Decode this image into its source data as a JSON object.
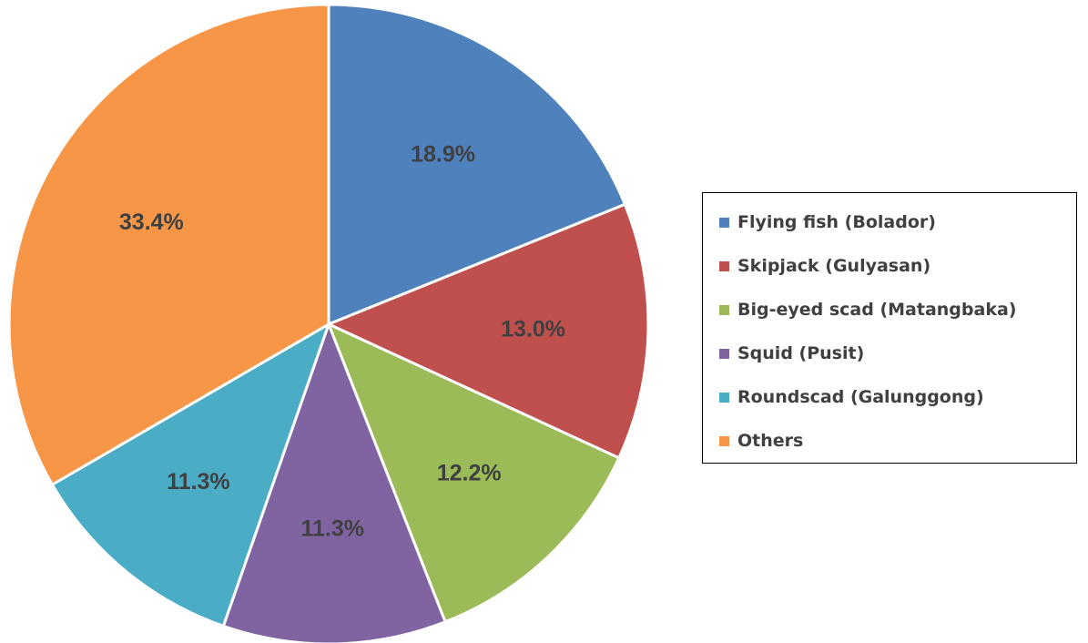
{
  "chart_data": {
    "type": "pie",
    "title": "",
    "legend_position": "right",
    "categories": [
      "Flying fish (Bolador)",
      "Skipjack (Gulyasan)",
      "Big-eyed scad (Matangbaka)",
      "Squid (Pusit)",
      "Roundscad (Galunggong)",
      "Others"
    ],
    "values": [
      18.9,
      13.0,
      12.2,
      11.3,
      11.3,
      33.4
    ],
    "labels": [
      "18.9%",
      "13.0%",
      "12.2%",
      "11.3%",
      "11.3%",
      "33.4%"
    ],
    "colors": [
      "#4f81bd",
      "#c0504d",
      "#9bbb59",
      "#8064a2",
      "#4bacc6",
      "#f79646"
    ],
    "start_angle_deg": 0,
    "direction": "clockwise"
  }
}
